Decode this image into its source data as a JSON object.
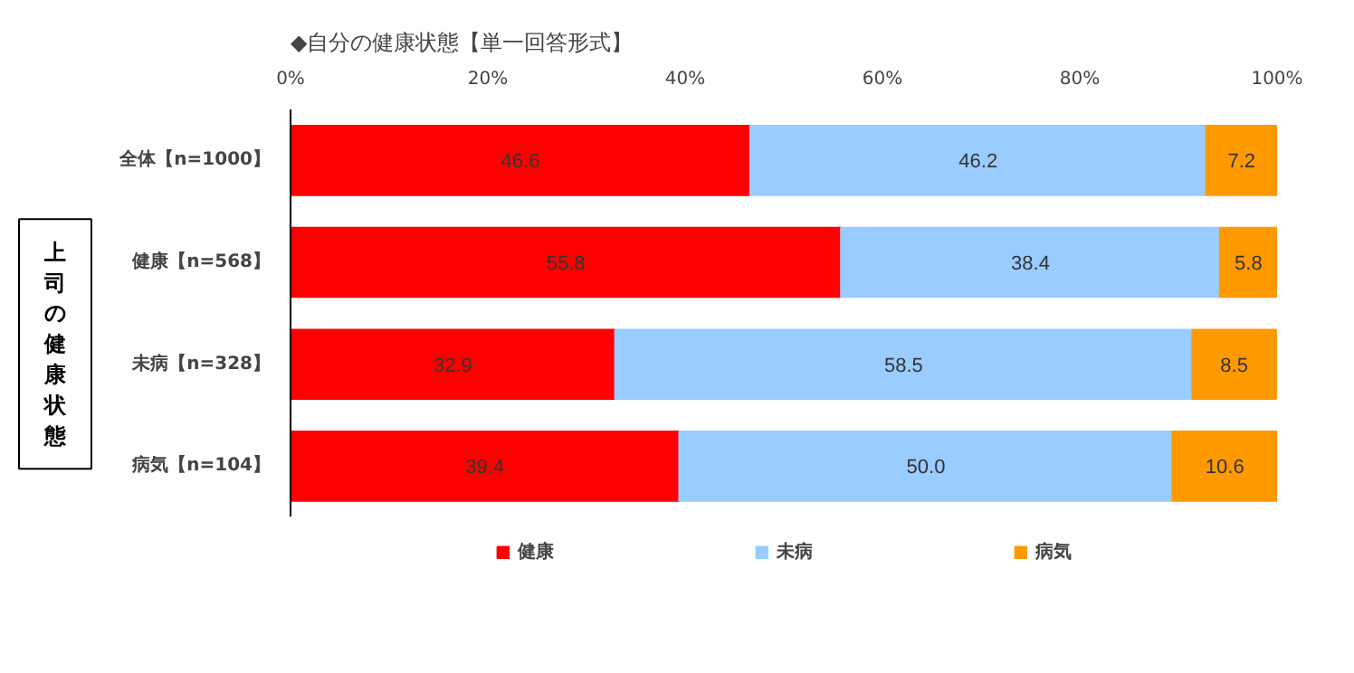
{
  "chart_data": {
    "type": "bar",
    "orientation": "horizontal",
    "stacked": true,
    "title": "◆自分の健康状態【単一回答形式】",
    "ylabel": "上司の健康状態",
    "categories": [
      "全体【n=1000】",
      "健康【n=568】",
      "未病【n=328】",
      "病気【n=104】"
    ],
    "series": [
      {
        "name": "健康",
        "color": "#ff0000",
        "values": [
          46.6,
          55.8,
          32.9,
          39.4
        ],
        "value_labels": [
          "46.6",
          "55.8",
          "32.9",
          "39.4"
        ]
      },
      {
        "name": "未病",
        "color": "#99ccff",
        "values": [
          46.2,
          38.4,
          58.5,
          50.0
        ],
        "value_labels": [
          "46.2",
          "38.4",
          "58.5",
          "50.0"
        ]
      },
      {
        "name": "病気",
        "color": "#ff9900",
        "values": [
          7.2,
          5.8,
          8.5,
          10.6
        ],
        "value_labels": [
          "7.2",
          "5.8",
          "8.5",
          "10.6"
        ]
      }
    ],
    "xlim": [
      0,
      100
    ],
    "xticks": [
      {
        "value": 0,
        "label": "0%"
      },
      {
        "value": 20,
        "label": "20%"
      },
      {
        "value": 40,
        "label": "40%"
      },
      {
        "value": 60,
        "label": "60%"
      },
      {
        "value": 80,
        "label": "80%"
      },
      {
        "value": 100,
        "label": "100%"
      }
    ],
    "grid": false,
    "legend": "bottom"
  }
}
